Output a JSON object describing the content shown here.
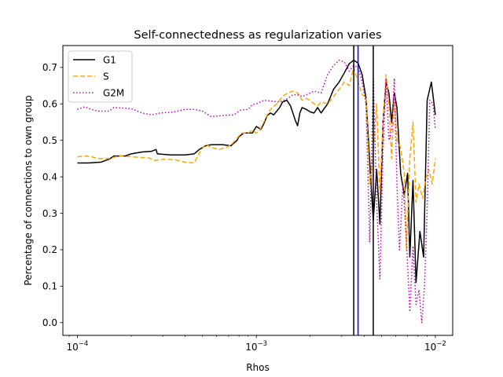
{
  "chart_data": {
    "type": "line",
    "title": "Self-connectedness as regularization varies",
    "xlabel": "Rhos",
    "ylabel": "Percentage of connections to own group",
    "xscale": "log",
    "xlim": [
      8.3e-05,
      0.0125
    ],
    "ylim": [
      -0.035,
      0.76
    ],
    "xticks": [
      {
        "value": 0.0001,
        "base": "10",
        "exp": "−4"
      },
      {
        "value": 0.001,
        "base": "10",
        "exp": "−3"
      },
      {
        "value": 0.01,
        "base": "10",
        "exp": "−2"
      }
    ],
    "yticks": [
      "0.0",
      "0.1",
      "0.2",
      "0.3",
      "0.4",
      "0.5",
      "0.6",
      "0.7"
    ],
    "grid": false,
    "legend": "top-left",
    "series": [
      {
        "name": "G1",
        "color": "#000000",
        "style": "solid",
        "points": [
          [
            0.0001,
            0.438
          ],
          [
            0.000115,
            0.438
          ],
          [
            0.000135,
            0.44
          ],
          [
            0.00015,
            0.448
          ],
          [
            0.00016,
            0.457
          ],
          [
            0.000185,
            0.457
          ],
          [
            0.0002,
            0.463
          ],
          [
            0.00023,
            0.468
          ],
          [
            0.00026,
            0.47
          ],
          [
            0.000275,
            0.475
          ],
          [
            0.00028,
            0.463
          ],
          [
            0.00033,
            0.46
          ],
          [
            0.0004,
            0.46
          ],
          [
            0.00045,
            0.463
          ],
          [
            0.00048,
            0.475
          ],
          [
            0.00052,
            0.485
          ],
          [
            0.00056,
            0.488
          ],
          [
            0.00065,
            0.488
          ],
          [
            0.00072,
            0.485
          ],
          [
            0.00078,
            0.5
          ],
          [
            0.0008,
            0.51
          ],
          [
            0.00085,
            0.52
          ],
          [
            0.0009,
            0.52
          ],
          [
            0.00095,
            0.52
          ],
          [
            0.001,
            0.538
          ],
          [
            0.00106,
            0.53
          ],
          [
            0.0011,
            0.545
          ],
          [
            0.00115,
            0.568
          ],
          [
            0.0012,
            0.575
          ],
          [
            0.00125,
            0.57
          ],
          [
            0.0013,
            0.58
          ],
          [
            0.00135,
            0.59
          ],
          [
            0.0014,
            0.605
          ],
          [
            0.00148,
            0.61
          ],
          [
            0.00155,
            0.595
          ],
          [
            0.0016,
            0.575
          ],
          [
            0.00165,
            0.555
          ],
          [
            0.0017,
            0.54
          ],
          [
            0.00175,
            0.575
          ],
          [
            0.0018,
            0.59
          ],
          [
            0.0019,
            0.585
          ],
          [
            0.002,
            0.578
          ],
          [
            0.0021,
            0.575
          ],
          [
            0.0022,
            0.59
          ],
          [
            0.0023,
            0.575
          ],
          [
            0.0025,
            0.6
          ],
          [
            0.0027,
            0.64
          ],
          [
            0.0029,
            0.66
          ],
          [
            0.0031,
            0.685
          ],
          [
            0.0033,
            0.71
          ],
          [
            0.0035,
            0.72
          ],
          [
            0.0037,
            0.712
          ],
          [
            0.0039,
            0.68
          ],
          [
            0.0041,
            0.615
          ],
          [
            0.0043,
            0.44
          ],
          [
            0.0045,
            0.28
          ],
          [
            0.0047,
            0.42
          ],
          [
            0.0049,
            0.27
          ],
          [
            0.0051,
            0.55
          ],
          [
            0.0053,
            0.66
          ],
          [
            0.0055,
            0.63
          ],
          [
            0.0057,
            0.55
          ],
          [
            0.0059,
            0.63
          ],
          [
            0.0061,
            0.59
          ],
          [
            0.0064,
            0.41
          ],
          [
            0.0067,
            0.35
          ],
          [
            0.007,
            0.41
          ],
          [
            0.0072,
            0.18
          ],
          [
            0.0075,
            0.39
          ],
          [
            0.0078,
            0.11
          ],
          [
            0.0082,
            0.25
          ],
          [
            0.0086,
            0.18
          ],
          [
            0.009,
            0.61
          ],
          [
            0.0095,
            0.66
          ],
          [
            0.01,
            0.57
          ]
        ]
      },
      {
        "name": "S",
        "color": "#ffa500",
        "style": "dashed",
        "points": [
          [
            0.0001,
            0.455
          ],
          [
            0.00011,
            0.457
          ],
          [
            0.00012,
            0.455
          ],
          [
            0.00013,
            0.45
          ],
          [
            0.00015,
            0.45
          ],
          [
            0.00017,
            0.457
          ],
          [
            0.0002,
            0.455
          ],
          [
            0.00023,
            0.453
          ],
          [
            0.00025,
            0.452
          ],
          [
            0.00027,
            0.445
          ],
          [
            0.0003,
            0.448
          ],
          [
            0.00035,
            0.447
          ],
          [
            0.0004,
            0.44
          ],
          [
            0.00045,
            0.438
          ],
          [
            0.00048,
            0.465
          ],
          [
            0.00052,
            0.49
          ],
          [
            0.00056,
            0.48
          ],
          [
            0.00062,
            0.475
          ],
          [
            0.00068,
            0.48
          ],
          [
            0.00073,
            0.49
          ],
          [
            0.00078,
            0.505
          ],
          [
            0.00082,
            0.52
          ],
          [
            0.0009,
            0.52
          ],
          [
            0.00095,
            0.528
          ],
          [
            0.001,
            0.52
          ],
          [
            0.00105,
            0.53
          ],
          [
            0.0011,
            0.55
          ],
          [
            0.00115,
            0.57
          ],
          [
            0.0012,
            0.585
          ],
          [
            0.0013,
            0.6
          ],
          [
            0.0014,
            0.62
          ],
          [
            0.0015,
            0.63
          ],
          [
            0.0016,
            0.635
          ],
          [
            0.0017,
            0.63
          ],
          [
            0.0018,
            0.61
          ],
          [
            0.0019,
            0.615
          ],
          [
            0.002,
            0.61
          ],
          [
            0.0021,
            0.6
          ],
          [
            0.0022,
            0.595
          ],
          [
            0.0023,
            0.605
          ],
          [
            0.0025,
            0.6
          ],
          [
            0.0027,
            0.62
          ],
          [
            0.0029,
            0.64
          ],
          [
            0.0031,
            0.66
          ],
          [
            0.0033,
            0.65
          ],
          [
            0.0035,
            0.7
          ],
          [
            0.0037,
            0.66
          ],
          [
            0.0039,
            0.625
          ],
          [
            0.0041,
            0.62
          ],
          [
            0.0043,
            0.38
          ],
          [
            0.0045,
            0.47
          ],
          [
            0.0047,
            0.6
          ],
          [
            0.0049,
            0.35
          ],
          [
            0.0051,
            0.55
          ],
          [
            0.0053,
            0.68
          ],
          [
            0.0055,
            0.6
          ],
          [
            0.0057,
            0.45
          ],
          [
            0.0059,
            0.62
          ],
          [
            0.0061,
            0.5
          ],
          [
            0.0064,
            0.48
          ],
          [
            0.0067,
            0.41
          ],
          [
            0.0069,
            0.2
          ],
          [
            0.0072,
            0.45
          ],
          [
            0.0075,
            0.55
          ],
          [
            0.0078,
            0.33
          ],
          [
            0.0081,
            0.38
          ],
          [
            0.0085,
            0.34
          ],
          [
            0.0088,
            0.39
          ],
          [
            0.0092,
            0.42
          ],
          [
            0.0096,
            0.38
          ],
          [
            0.01,
            0.45
          ]
        ]
      },
      {
        "name": "G2M",
        "color": "#bf00bf",
        "style": "dotted",
        "points": [
          [
            0.0001,
            0.585
          ],
          [
            0.00011,
            0.592
          ],
          [
            0.00012,
            0.585
          ],
          [
            0.00013,
            0.58
          ],
          [
            0.00015,
            0.58
          ],
          [
            0.00016,
            0.59
          ],
          [
            0.0002,
            0.587
          ],
          [
            0.00023,
            0.575
          ],
          [
            0.00026,
            0.57
          ],
          [
            0.00029,
            0.575
          ],
          [
            0.00034,
            0.577
          ],
          [
            0.0004,
            0.585
          ],
          [
            0.00045,
            0.585
          ],
          [
            0.0005,
            0.58
          ],
          [
            0.00056,
            0.565
          ],
          [
            0.00065,
            0.568
          ],
          [
            0.00075,
            0.57
          ],
          [
            0.00082,
            0.583
          ],
          [
            0.0009,
            0.585
          ],
          [
            0.00095,
            0.598
          ],
          [
            0.001,
            0.6
          ],
          [
            0.0011,
            0.61
          ],
          [
            0.0012,
            0.608
          ],
          [
            0.00135,
            0.605
          ],
          [
            0.0015,
            0.615
          ],
          [
            0.0016,
            0.625
          ],
          [
            0.0017,
            0.625
          ],
          [
            0.0018,
            0.62
          ],
          [
            0.0019,
            0.625
          ],
          [
            0.0021,
            0.635
          ],
          [
            0.0023,
            0.63
          ],
          [
            0.0025,
            0.68
          ],
          [
            0.0027,
            0.705
          ],
          [
            0.0029,
            0.72
          ],
          [
            0.0031,
            0.715
          ],
          [
            0.0033,
            0.69
          ],
          [
            0.0035,
            0.705
          ],
          [
            0.0037,
            0.7
          ],
          [
            0.0039,
            0.66
          ],
          [
            0.0041,
            0.6
          ],
          [
            0.0043,
            0.22
          ],
          [
            0.0045,
            0.67
          ],
          [
            0.0047,
            0.33
          ],
          [
            0.0049,
            0.12
          ],
          [
            0.0051,
            0.47
          ],
          [
            0.0053,
            0.67
          ],
          [
            0.0055,
            0.5
          ],
          [
            0.0057,
            0.53
          ],
          [
            0.0059,
            0.67
          ],
          [
            0.0061,
            0.38
          ],
          [
            0.0063,
            0.2
          ],
          [
            0.0066,
            0.38
          ],
          [
            0.0069,
            0.22
          ],
          [
            0.0072,
            0.03
          ],
          [
            0.0075,
            0.21
          ],
          [
            0.0078,
            0.05
          ],
          [
            0.0081,
            0.09
          ],
          [
            0.0084,
            0.0
          ],
          [
            0.0087,
            0.1
          ],
          [
            0.009,
            0.31
          ],
          [
            0.0093,
            0.61
          ],
          [
            0.0097,
            0.6
          ],
          [
            0.01,
            0.53
          ]
        ]
      }
    ],
    "vlines": [
      {
        "x": 0.0035,
        "color": "#000000"
      },
      {
        "x": 0.0037,
        "color": "#0000ff"
      },
      {
        "x": 0.0045,
        "color": "#000000"
      }
    ]
  }
}
